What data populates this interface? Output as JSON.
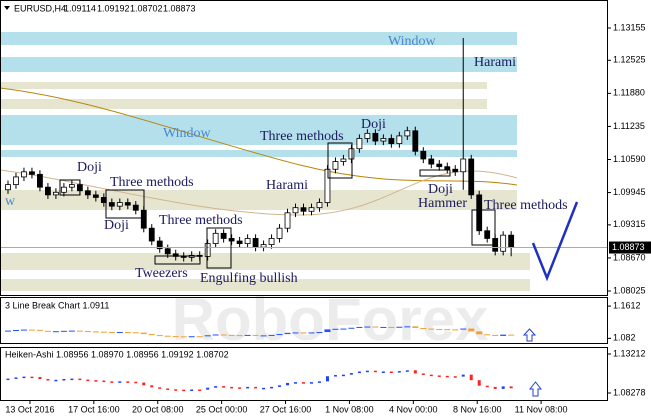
{
  "watermark": "RoboForex",
  "chart_data": [
    {
      "type": "candlestick",
      "header": "EURUSD,H4",
      "open": [
        1.1,
        1.101,
        1.1025,
        1.1035,
        1.103,
        1.1005,
        1.099,
        1.0995,
        1.1005,
        1.101,
        1.0998,
        1.099,
        1.0985,
        1.0975,
        1.0968,
        1.0975,
        1.097,
        1.096,
        1.0925,
        1.09,
        1.0885,
        1.0875,
        1.087,
        1.0868,
        1.0872,
        1.087,
        1.0895,
        1.0915,
        1.0905,
        1.09,
        1.0895,
        1.0905,
        1.0888,
        1.0893,
        1.0905,
        1.0925,
        1.0955,
        1.0965,
        1.0958,
        1.0965,
        1.0975,
        1.104,
        1.1055,
        1.106,
        1.108,
        1.11,
        1.111,
        1.1095,
        1.11,
        1.109,
        1.1105,
        1.1115,
        1.1075,
        1.106,
        1.105,
        1.1045,
        1.104,
        1.1035,
        1.106,
        1.099,
        1.092,
        1.0905,
        1.088,
        1.09114
      ],
      "high": [
        1.1018,
        1.1033,
        1.1043,
        1.1043,
        1.1038,
        1.1013,
        1.1003,
        1.1013,
        1.1018,
        1.1018,
        1.1006,
        1.0998,
        1.0993,
        1.0983,
        1.0983,
        1.0983,
        1.0978,
        1.0968,
        1.0933,
        1.0908,
        1.0893,
        1.0883,
        1.0878,
        1.088,
        1.088,
        1.0903,
        1.0923,
        1.0923,
        1.0913,
        1.0908,
        1.0913,
        1.0913,
        1.0901,
        1.0913,
        1.0933,
        1.0963,
        1.0973,
        1.0973,
        1.0973,
        1.0983,
        1.1048,
        1.1063,
        1.1068,
        1.1088,
        1.1108,
        1.1118,
        1.1118,
        1.1108,
        1.1108,
        1.1113,
        1.1123,
        1.1123,
        1.1083,
        1.1068,
        1.1058,
        1.1053,
        1.1048,
        1.1296,
        1.1068,
        1.0998,
        1.0928,
        1.0913,
        1.0919,
        1.09192
      ],
      "low": [
        1.0992,
        1.1002,
        1.1017,
        1.1022,
        1.0997,
        1.0982,
        1.0982,
        1.0987,
        1.0997,
        1.099,
        1.0982,
        1.0977,
        1.0967,
        1.096,
        1.096,
        1.0962,
        1.0952,
        1.0917,
        1.0892,
        1.0877,
        1.0867,
        1.0862,
        1.086,
        1.086,
        1.0862,
        1.0862,
        1.0887,
        1.0897,
        1.0892,
        1.0887,
        1.0887,
        1.088,
        1.088,
        1.0885,
        1.0897,
        1.0917,
        1.0947,
        1.095,
        1.095,
        1.0957,
        1.0967,
        1.1032,
        1.1047,
        1.1052,
        1.1072,
        1.1092,
        1.1087,
        1.1087,
        1.1082,
        1.1082,
        1.1097,
        1.1067,
        1.1052,
        1.1042,
        1.1037,
        1.1032,
        1.1027,
        1.1,
        1.0982,
        1.0912,
        1.0897,
        1.0872,
        1.0872,
        1.08702
      ],
      "close": [
        1.101,
        1.1025,
        1.1035,
        1.103,
        1.1005,
        1.099,
        1.0995,
        1.1005,
        1.101,
        1.0998,
        1.099,
        1.0985,
        1.0975,
        1.0968,
        1.0975,
        1.097,
        1.096,
        1.0925,
        1.09,
        1.0885,
        1.0875,
        1.087,
        1.0868,
        1.0872,
        1.087,
        1.0895,
        1.0915,
        1.0905,
        1.09,
        1.0895,
        1.0905,
        1.0888,
        1.0893,
        1.0905,
        1.0925,
        1.0955,
        1.0965,
        1.0958,
        1.0965,
        1.0975,
        1.104,
        1.1055,
        1.106,
        1.108,
        1.11,
        1.111,
        1.1095,
        1.11,
        1.109,
        1.1105,
        1.1115,
        1.1075,
        1.106,
        1.105,
        1.1045,
        1.104,
        1.1035,
        1.106,
        1.099,
        1.092,
        1.0905,
        1.088,
        1.09114,
        1.08873
      ],
      "ylim": [
        1.07947,
        1.13701
      ],
      "yticks": [
        1.13155,
        1.12525,
        {
          "value": 1.1188,
          "label": "1.11880"
        },
        1.11235,
        {
          "value": 1.1059,
          "label": "1.10590"
        },
        1.09945,
        1.09315,
        {
          "value": 1.0867,
          "label": "1.08670"
        },
        1.08025
      ],
      "xlim": [
        0,
        76
      ],
      "xticks": [
        {
          "value": 3.75,
          "label": "13 Oct 2016"
        },
        {
          "value": 11.75,
          "label": "17 Oct 16:00"
        },
        {
          "value": 19.75,
          "label": "20 Oct 08:00"
        },
        {
          "value": 27.75,
          "label": "25 Oct 00:00"
        },
        {
          "value": 35.75,
          "label": "27 Oct 16:00"
        },
        {
          "value": 43.75,
          "label": "1 Nov 08:00"
        },
        {
          "value": 51.75,
          "label": "4 Nov 00:00"
        },
        {
          "value": 59.75,
          "label": "8 Nov 16:00"
        },
        {
          "value": 67.75,
          "label": "11 Nov 08:00"
        }
      ],
      "annotations": [
        "Window",
        "Harami",
        "Window",
        "Three methods",
        "Doji",
        "Doji",
        "Three methods",
        "Harami",
        "Doji",
        "w",
        "Hammer",
        "Three methods",
        "Doji",
        "Three methods",
        "Tweezers",
        "Engulfing bullish"
      ]
    },
    {
      "type": "line_break",
      "title": "3 Line Break Chart 1.0911",
      "ylim": [
        1.0706,
        1.1835
      ],
      "yticks": [
        1.1612,
        1.082
      ]
    },
    {
      "type": "heiken_ashi",
      "title": "Heiken-Ashi 1.08956 1.08970 1.08956 1.09192 1.08702",
      "ylim": [
        1.07393,
        1.14098
      ],
      "yticks": [
        1.13212,
        1.08278
      ]
    }
  ]
}
